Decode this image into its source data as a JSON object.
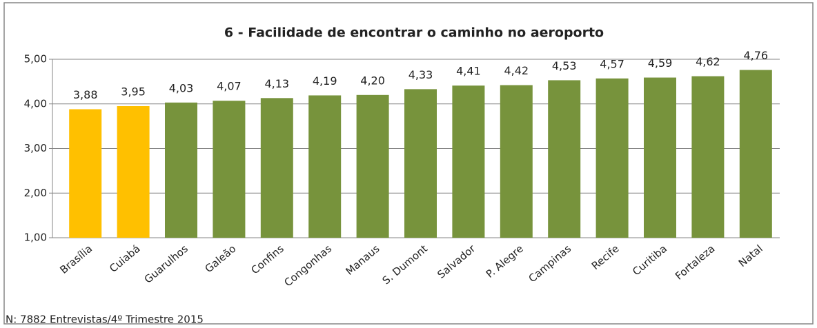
{
  "chart_data": {
    "type": "bar",
    "title": "6 - Facilidade de encontrar o caminho no aeroporto",
    "categories": [
      "Brasília",
      "Cuiabá",
      "Guarulhos",
      "Galeão",
      "Confins",
      "Congonhas",
      "Manaus",
      "S. Dumont",
      "Salvador",
      "P. Alegre",
      "Campinas",
      "Recife",
      "Curitiba",
      "Fortaleza",
      "Natal"
    ],
    "values": [
      3.88,
      3.95,
      4.03,
      4.07,
      4.13,
      4.19,
      4.2,
      4.33,
      4.41,
      4.42,
      4.53,
      4.57,
      4.59,
      4.62,
      4.76
    ],
    "value_labels": [
      "3,88",
      "3,95",
      "4,03",
      "4,07",
      "4,13",
      "4,19",
      "4,20",
      "4,33",
      "4,41",
      "4,42",
      "4,53",
      "4,57",
      "4,59",
      "4,62",
      "4,76"
    ],
    "colors": [
      "#ffc000",
      "#ffc000",
      "#77933c",
      "#77933c",
      "#77933c",
      "#77933c",
      "#77933c",
      "#77933c",
      "#77933c",
      "#77933c",
      "#77933c",
      "#77933c",
      "#77933c",
      "#77933c",
      "#77933c"
    ],
    "ylim": [
      1,
      5
    ],
    "yticks": [
      {
        "value": 1,
        "label": "1,00"
      },
      {
        "value": 2,
        "label": "2,00"
      },
      {
        "value": 3,
        "label": "3,00"
      },
      {
        "value": 4,
        "label": "4,00"
      },
      {
        "value": 5,
        "label": "5,00"
      }
    ],
    "grid": true,
    "note": "N: 7882 Entrevistas/4º Trimestre 2015"
  }
}
